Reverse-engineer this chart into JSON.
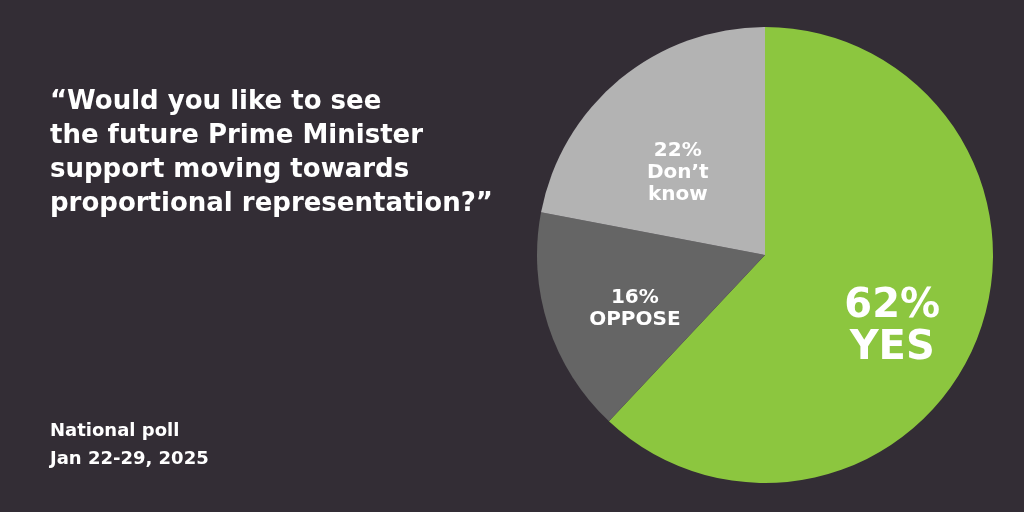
{
  "chart_data": {
    "type": "pie",
    "title": "“Would you like to see\nthe future Prime Minister\nsupport moving towards\nproportional representation?”",
    "categories": [
      "YES",
      "OPPOSE",
      "Don’t know"
    ],
    "values": [
      62,
      16,
      22
    ],
    "value_labels": [
      "62%",
      "16%",
      "22%"
    ],
    "colors": [
      "#8cc63f",
      "#656565",
      "#b3b3b3"
    ],
    "annotations": [
      "National poll\nJan 22-29, 2025"
    ],
    "legend": false
  }
}
